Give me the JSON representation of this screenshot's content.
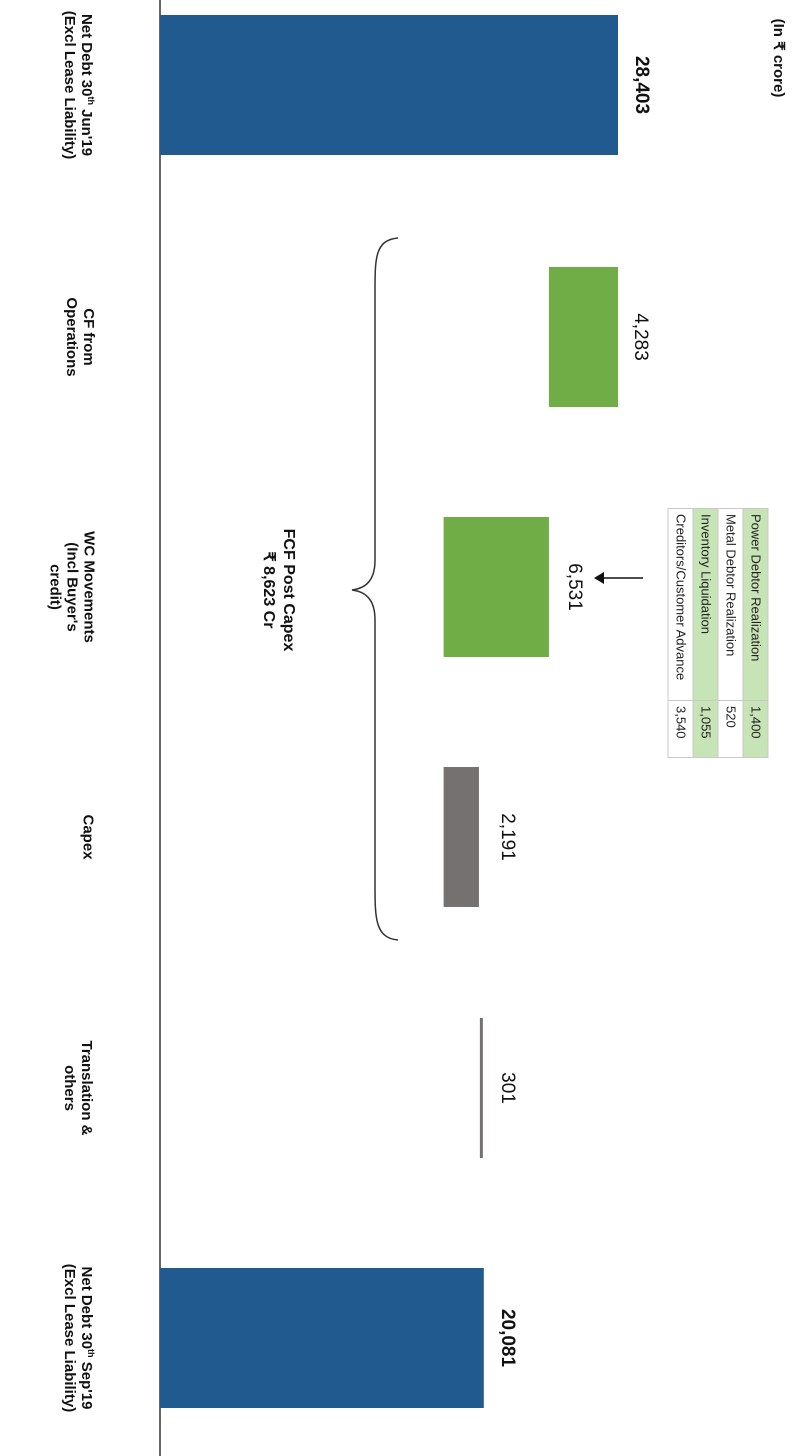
{
  "unit_note": "(In ₹ crore)",
  "fcf_label": {
    "line1": "FCF Post Capex",
    "line2": "₹ 8,623 Cr"
  },
  "colors": {
    "debt": "#215a8e",
    "positive": "#70ad47",
    "negative": "#767171",
    "other": "#767171",
    "table_shade": "#c7e4b6"
  },
  "chart_data": {
    "type": "bar",
    "subtype": "waterfall",
    "orientation": "rotated-90-clockwise",
    "unit": "(In ₹ crore)",
    "title": "",
    "categories": [
      {
        "label": "Net Debt 30",
        "sup": "th",
        "rest": "Jun'19 (Excl Lease Liability)"
      },
      {
        "label": "CF from Operations",
        "sup": "",
        "rest": ""
      },
      {
        "label": "WC Movements (Incl Buyer's credit)",
        "sup": "",
        "rest": ""
      },
      {
        "label": "Capex",
        "sup": "",
        "rest": ""
      },
      {
        "label": "Translation & others",
        "sup": "",
        "rest": ""
      },
      {
        "label": "Net Debt 30",
        "sup": "th",
        "rest": "Sep'19 (Excl Lease Liability)"
      }
    ],
    "values": [
      28403,
      4283,
      6531,
      2191,
      301,
      20081
    ],
    "value_labels": [
      "28,403",
      "4,283",
      "6,531",
      "2,191",
      "301",
      "20,081"
    ],
    "kinds": [
      "total",
      "decrease",
      "decrease",
      "increase",
      "increase",
      "total"
    ],
    "bold_labels": [
      true,
      false,
      false,
      false,
      false,
      true
    ],
    "wc_breakdown": [
      {
        "item": "Power Debtor Realization",
        "value": "1,400"
      },
      {
        "item": "Metal Debtor Realization",
        "value": "520"
      },
      {
        "item": "Inventory Liquidation",
        "value": "1,055"
      },
      {
        "item": "Creditors/Customer Advance",
        "value": "3,540"
      }
    ]
  }
}
